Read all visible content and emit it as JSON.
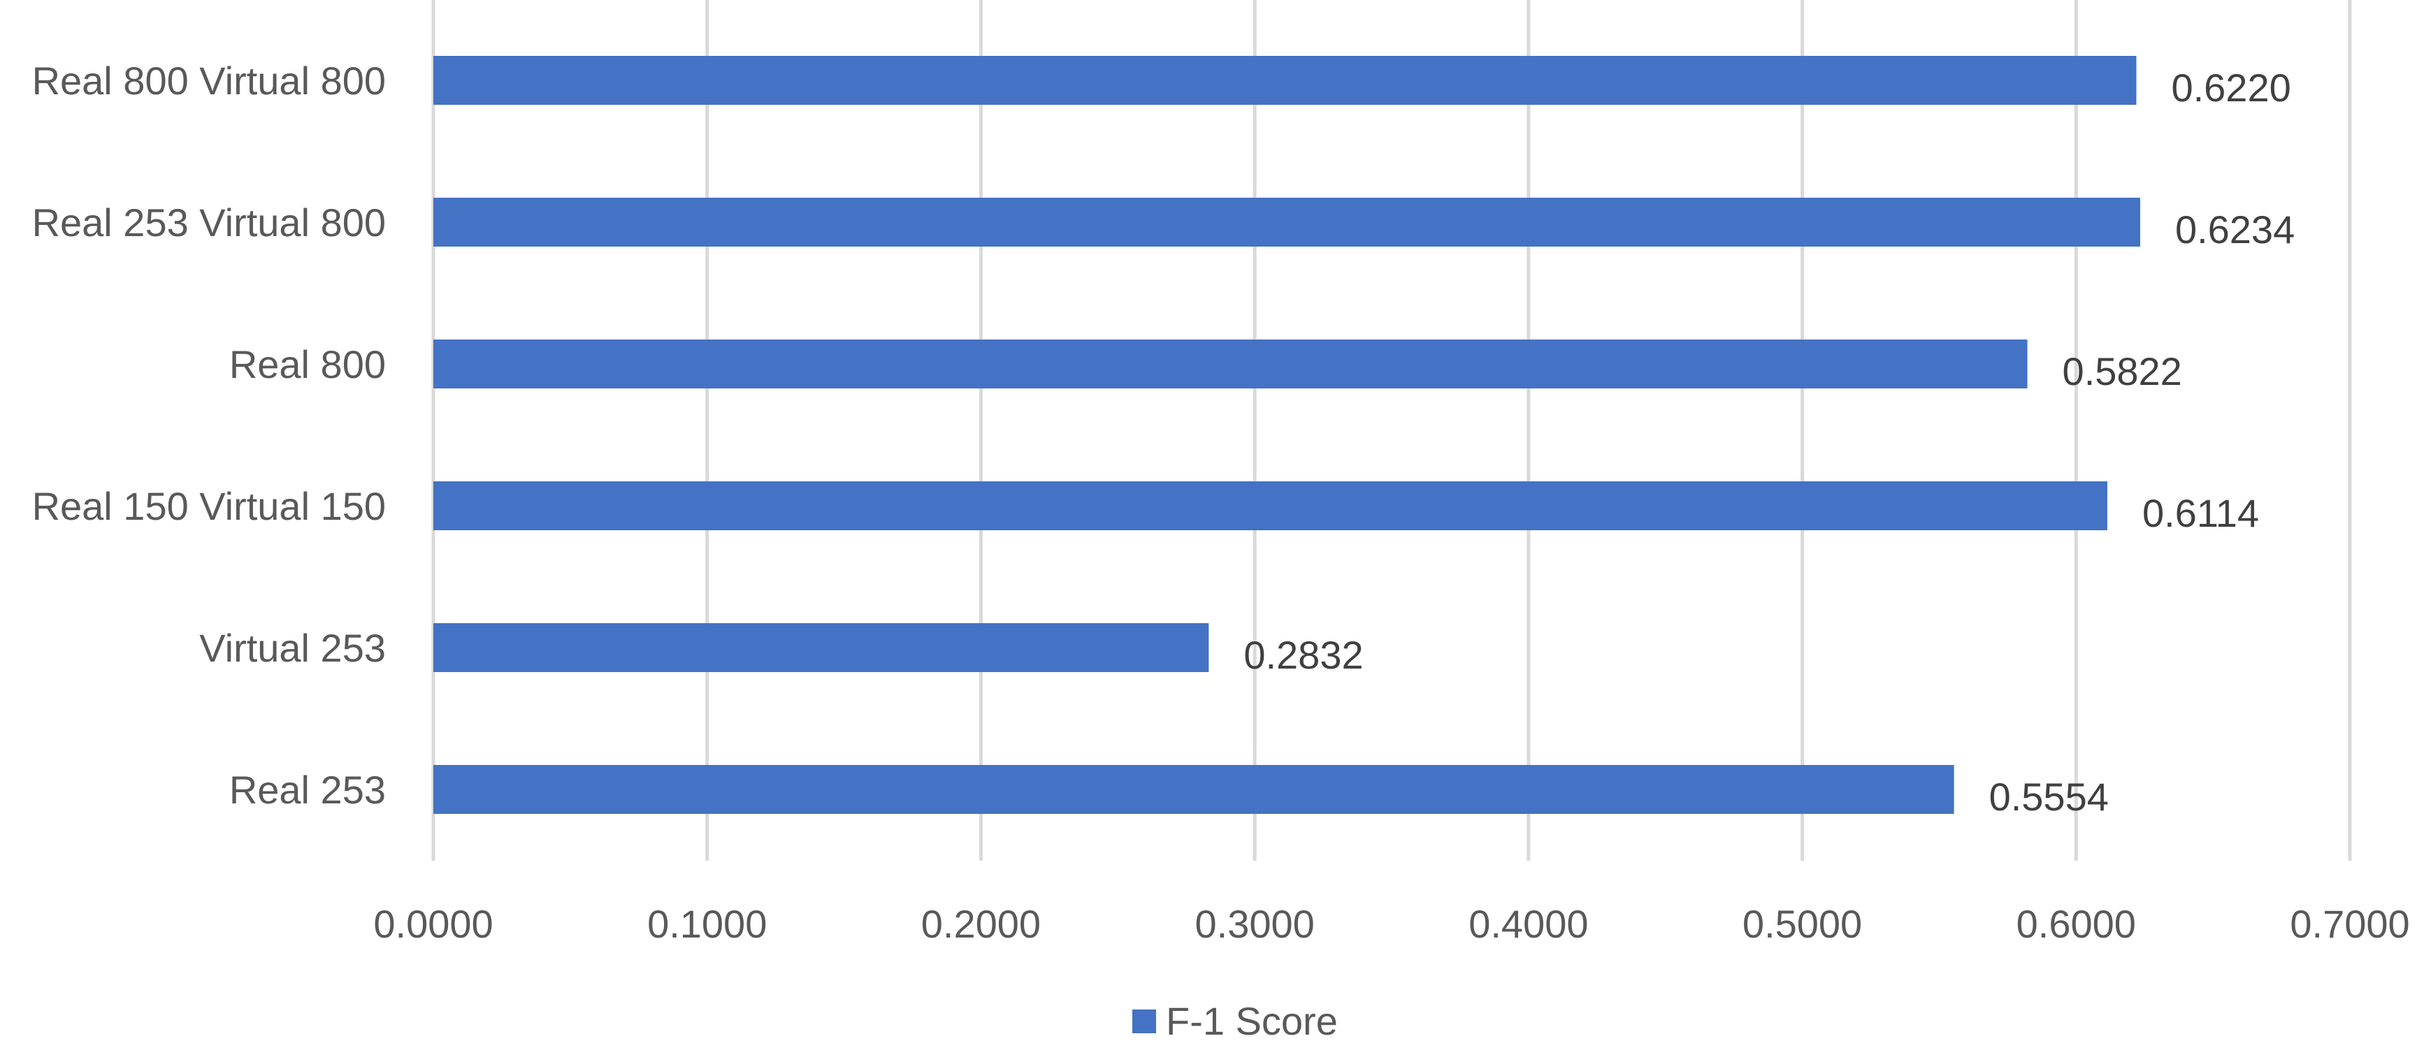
{
  "chart_data": {
    "type": "bar",
    "orientation": "horizontal",
    "categories": [
      "Real 800 Virtual 800",
      "Real 253 Virtual 800",
      "Real 800",
      "Real 150 Virtual 150",
      "Virtual 253",
      "Real 253"
    ],
    "series": [
      {
        "name": "F-1 Score",
        "values": [
          0.622,
          0.6234,
          0.5822,
          0.6114,
          0.2832,
          0.5554
        ],
        "data_labels": [
          "0.6220",
          "0.6234",
          "0.5822",
          "0.6114",
          "0.2832",
          "0.5554"
        ],
        "color": "#4472c4"
      }
    ],
    "xlim": [
      0,
      0.7
    ],
    "x_ticks": [
      0,
      0.1,
      0.2,
      0.3,
      0.4,
      0.5,
      0.6,
      0.7
    ],
    "x_tick_labels": [
      "0.0000",
      "0.1000",
      "0.2000",
      "0.3000",
      "0.4000",
      "0.5000",
      "0.6000",
      "0.7000"
    ],
    "grid": true,
    "legend": {
      "position": "bottom",
      "entries": [
        "F-1 Score"
      ]
    },
    "title": "",
    "xlabel": "",
    "ylabel": "",
    "colors": {
      "bar": "#4472c4",
      "grid": "#d9d9d9",
      "text": "#595959"
    }
  }
}
